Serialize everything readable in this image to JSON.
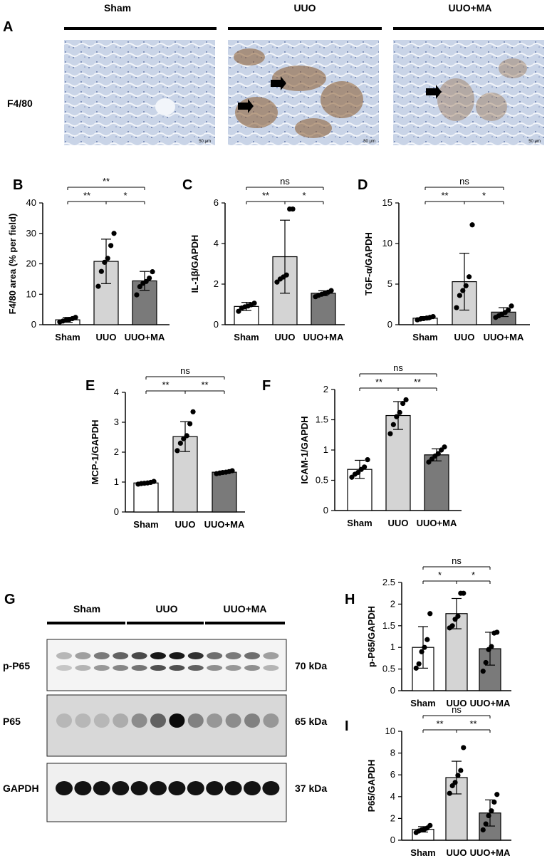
{
  "panel_letters": {
    "A": "A",
    "B": "B",
    "C": "C",
    "D": "D",
    "E": "E",
    "F": "F",
    "G": "G",
    "H": "H",
    "I": "I"
  },
  "panel_a": {
    "columns": [
      "Sham",
      "UUO",
      "UUO+MA"
    ],
    "row_label": "F4/80",
    "scale_bar": "50 μm",
    "colors": {
      "tissue": "#c7d3e6",
      "stain": "#8b5a2b",
      "arrow": "#000000"
    }
  },
  "blot": {
    "groups": [
      "Sham",
      "UUO",
      "UUO+MA"
    ],
    "rows": [
      {
        "label": "p-P65",
        "kda": "70 kDa"
      },
      {
        "label": "P65",
        "kda": "65 kDa"
      },
      {
        "label": "GAPDH",
        "kda": "37 kDa"
      }
    ]
  },
  "chart_data": [
    {
      "panel": "B",
      "type": "bar",
      "categories": [
        "Sham",
        "UUO",
        "UUO+MA"
      ],
      "values": [
        1.6,
        20.8,
        14.4
      ],
      "sd": [
        0.8,
        7.3,
        3.1
      ],
      "points": [
        [
          0.9,
          1.2,
          1.5,
          1.7,
          2.0,
          2.4
        ],
        [
          12.6,
          17.5,
          20.5,
          21.8,
          26.0,
          30.0
        ],
        [
          9.8,
          12.5,
          13.6,
          14.2,
          15.3,
          17.4
        ]
      ],
      "ylabel": "F4/80 area  (% per field)",
      "ylim": [
        0,
        40
      ],
      "yticks": [
        0,
        10,
        20,
        30,
        40
      ],
      "colors": [
        "#ffffff",
        "#d4d4d4",
        "#7a7a7a"
      ],
      "sig": [
        {
          "a": 0,
          "b": 1,
          "label": "**"
        },
        {
          "a": 1,
          "b": 2,
          "label": "*"
        },
        {
          "a": 0,
          "b": 2,
          "label": "**"
        }
      ]
    },
    {
      "panel": "C",
      "type": "bar",
      "categories": [
        "Sham",
        "UUO",
        "UUO+MA"
      ],
      "values": [
        0.9,
        3.35,
        1.55
      ],
      "sd": [
        0.2,
        1.8,
        0.12
      ],
      "points": [
        [
          0.66,
          0.82,
          0.88,
          0.92,
          0.98,
          1.06
        ],
        [
          2.1,
          2.25,
          2.35,
          2.45,
          5.7,
          5.7
        ],
        [
          1.38,
          1.45,
          1.5,
          1.55,
          1.6,
          1.68
        ]
      ],
      "ylabel": "IL-1β/GAPDH",
      "ylim": [
        0,
        6
      ],
      "yticks": [
        0,
        2,
        4,
        6
      ],
      "colors": [
        "#ffffff",
        "#d4d4d4",
        "#7a7a7a"
      ],
      "sig": [
        {
          "a": 0,
          "b": 1,
          "label": "**"
        },
        {
          "a": 1,
          "b": 2,
          "label": "*"
        },
        {
          "a": 0,
          "b": 2,
          "label": "ns"
        }
      ]
    },
    {
      "panel": "D",
      "type": "bar",
      "categories": [
        "Sham",
        "UUO",
        "UUO+MA"
      ],
      "values": [
        0.8,
        5.3,
        1.55
      ],
      "sd": [
        0.2,
        3.5,
        0.55
      ],
      "points": [
        [
          0.6,
          0.7,
          0.75,
          0.82,
          0.9,
          1.0
        ],
        [
          2.1,
          3.6,
          4.2,
          4.8,
          5.9,
          12.3
        ],
        [
          0.9,
          1.1,
          1.3,
          1.5,
          1.8,
          2.3
        ]
      ],
      "ylabel": "TGF-α/GAPDH",
      "ylim": [
        0,
        15
      ],
      "yticks": [
        0,
        5,
        10,
        15
      ],
      "colors": [
        "#ffffff",
        "#d4d4d4",
        "#7a7a7a"
      ],
      "sig": [
        {
          "a": 0,
          "b": 1,
          "label": "**"
        },
        {
          "a": 1,
          "b": 2,
          "label": "*"
        },
        {
          "a": 0,
          "b": 2,
          "label": "ns"
        }
      ]
    },
    {
      "panel": "E",
      "type": "bar",
      "categories": [
        "Sham",
        "UUO",
        "UUO+MA"
      ],
      "values": [
        0.97,
        2.52,
        1.33
      ],
      "sd": [
        0.04,
        0.5,
        0.04
      ],
      "points": [
        [
          0.93,
          0.95,
          0.96,
          0.97,
          0.99,
          1.02
        ],
        [
          2.05,
          2.3,
          2.45,
          2.55,
          2.95,
          3.35
        ],
        [
          1.28,
          1.3,
          1.32,
          1.33,
          1.35,
          1.38
        ]
      ],
      "ylabel": "MCP-1/GAPDH",
      "ylim": [
        0,
        4
      ],
      "yticks": [
        0,
        1,
        2,
        3,
        4
      ],
      "colors": [
        "#ffffff",
        "#d4d4d4",
        "#7a7a7a"
      ],
      "sig": [
        {
          "a": 0,
          "b": 1,
          "label": "**"
        },
        {
          "a": 1,
          "b": 2,
          "label": "**"
        },
        {
          "a": 0,
          "b": 2,
          "label": "ns"
        }
      ]
    },
    {
      "panel": "F",
      "type": "bar",
      "categories": [
        "Sham",
        "UUO",
        "UUO+MA"
      ],
      "values": [
        0.68,
        1.57,
        0.92
      ],
      "sd": [
        0.15,
        0.23,
        0.1
      ],
      "points": [
        [
          0.55,
          0.6,
          0.63,
          0.68,
          0.72,
          0.84
        ],
        [
          1.27,
          1.42,
          1.55,
          1.62,
          1.77,
          1.83
        ],
        [
          0.8,
          0.85,
          0.9,
          0.94,
          1.0,
          1.05
        ]
      ],
      "ylabel": "ICAM-1/GAPDH",
      "ylim": [
        0,
        2.0
      ],
      "yticks": [
        0,
        0.5,
        1.0,
        1.5,
        2.0
      ],
      "colors": [
        "#ffffff",
        "#d4d4d4",
        "#7a7a7a"
      ],
      "sig": [
        {
          "a": 0,
          "b": 1,
          "label": "**"
        },
        {
          "a": 1,
          "b": 2,
          "label": "**"
        },
        {
          "a": 0,
          "b": 2,
          "label": "ns"
        }
      ]
    },
    {
      "panel": "H",
      "type": "bar",
      "categories": [
        "Sham",
        "UUO",
        "UUO+MA"
      ],
      "values": [
        1.0,
        1.78,
        0.97
      ],
      "sd": [
        0.48,
        0.35,
        0.38
      ],
      "points": [
        [
          0.52,
          0.62,
          0.9,
          1.0,
          1.18,
          1.78
        ],
        [
          1.45,
          1.5,
          1.65,
          1.72,
          2.25,
          2.25
        ],
        [
          0.45,
          0.65,
          0.95,
          1.02,
          1.33,
          1.35
        ]
      ],
      "ylabel": "p-P65/GAPDH",
      "ylim": [
        0,
        2.5
      ],
      "yticks": [
        0,
        0.5,
        1.0,
        1.5,
        2.0,
        2.5
      ],
      "colors": [
        "#ffffff",
        "#d4d4d4",
        "#7a7a7a"
      ],
      "sig": [
        {
          "a": 0,
          "b": 1,
          "label": "*"
        },
        {
          "a": 1,
          "b": 2,
          "label": "*"
        },
        {
          "a": 0,
          "b": 2,
          "label": "ns"
        }
      ]
    },
    {
      "panel": "I",
      "type": "bar",
      "categories": [
        "Sham",
        "UUO",
        "UUO+MA"
      ],
      "values": [
        1.0,
        5.75,
        2.5
      ],
      "sd": [
        0.25,
        1.5,
        1.2
      ],
      "points": [
        [
          0.7,
          0.85,
          0.95,
          1.0,
          1.12,
          1.35
        ],
        [
          4.3,
          5.0,
          5.3,
          5.95,
          6.4,
          8.5
        ],
        [
          0.95,
          1.5,
          2.25,
          2.7,
          3.5,
          4.2
        ]
      ],
      "ylabel": "P65/GAPDH",
      "ylim": [
        0,
        10
      ],
      "yticks": [
        0,
        2,
        4,
        6,
        8,
        10
      ],
      "colors": [
        "#ffffff",
        "#d4d4d4",
        "#7a7a7a"
      ],
      "sig": [
        {
          "a": 0,
          "b": 1,
          "label": "**"
        },
        {
          "a": 1,
          "b": 2,
          "label": "**"
        },
        {
          "a": 0,
          "b": 2,
          "label": "ns"
        }
      ]
    }
  ]
}
